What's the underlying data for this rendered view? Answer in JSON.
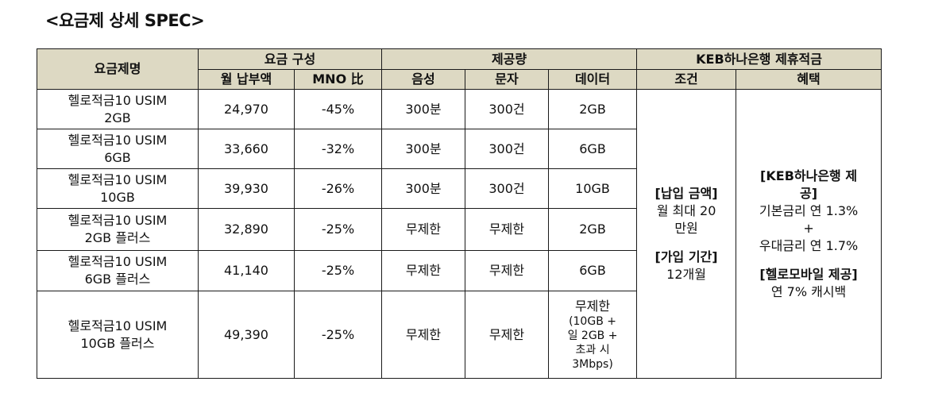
{
  "title": "<요금제 상세 SPEC>",
  "headers": {
    "plan_name": "요금제명",
    "fee_group": "요금 구성",
    "monthly_fee": "월 납부액",
    "mno_ratio": "MNO 比",
    "offer_group": "제공량",
    "voice": "음성",
    "sms": "문자",
    "data": "데이터",
    "bank_group": "KEB하나은행 제휴적금",
    "condition": "조건",
    "benefit": "혜택"
  },
  "rows": [
    {
      "name1": "헬로적금10 USIM",
      "name2": "2GB",
      "fee": "24,970",
      "mno": "-45%",
      "voice": "300분",
      "sms": "300건",
      "data": "2GB"
    },
    {
      "name1": "헬로적금10 USIM",
      "name2": "6GB",
      "fee": "33,660",
      "mno": "-32%",
      "voice": "300분",
      "sms": "300건",
      "data": "6GB"
    },
    {
      "name1": "헬로적금10 USIM",
      "name2": "10GB",
      "fee": "39,930",
      "mno": "-26%",
      "voice": "300분",
      "sms": "300건",
      "data": "10GB"
    },
    {
      "name1": "헬로적금10 USIM",
      "name2": "2GB 플러스",
      "fee": "32,890",
      "mno": "-25%",
      "voice": "무제한",
      "sms": "무제한",
      "data": "2GB"
    },
    {
      "name1": "헬로적금10 USIM",
      "name2": "6GB 플러스",
      "fee": "41,140",
      "mno": "-25%",
      "voice": "무제한",
      "sms": "무제한",
      "data": "6GB"
    },
    {
      "name1": "헬로적금10 USIM",
      "name2": "10GB 플러스",
      "fee": "49,390",
      "mno": "-25%",
      "voice": "무제한",
      "sms": "무제한",
      "data_lines": [
        "무제한",
        "(10GB +",
        "일 2GB +",
        "초과 시",
        "3Mbps)"
      ]
    }
  ],
  "condition": {
    "amount_label": "[납입 금액]",
    "amount_line1": "월 최대 20",
    "amount_line2": "만원",
    "period_label": "[가입 기간]",
    "period_value": "12개월"
  },
  "benefit": {
    "bank_label_1": "[KEB하나은행 제",
    "bank_label_2": "공]",
    "base_rate": "기본금리 연 1.3%",
    "plus": "+",
    "bonus_rate": "우대금리 연 1.7%",
    "mobile_label": "[헬로모바일 제공]",
    "cashback": "연 7% 캐시백"
  }
}
